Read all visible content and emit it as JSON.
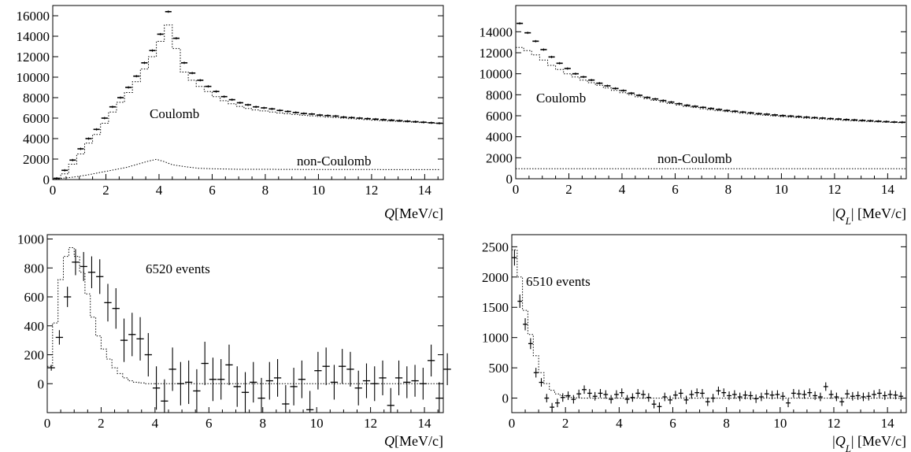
{
  "figure": {
    "background": "#ffffff",
    "ink": "#000000"
  },
  "chart_data": [
    {
      "id": "tl",
      "type": "histogram",
      "xlabel_parts": [
        {
          "t": "Q",
          "italic": true
        },
        {
          "t": "[MeV/c]",
          "italic": false
        }
      ],
      "xlim": [
        0,
        14.7
      ],
      "ylim": [
        0,
        17000
      ],
      "xticks": [
        0,
        2,
        4,
        6,
        8,
        10,
        12,
        14
      ],
      "yticks": [
        0,
        2000,
        4000,
        6000,
        8000,
        10000,
        12000,
        14000,
        16000
      ],
      "annotations": [
        {
          "text": "Coulomb"
        },
        {
          "text": "non-Coulomb"
        }
      ],
      "series": [
        {
          "style": "data",
          "x_start": 0,
          "bin_width": 0.3,
          "values": [
            120,
            900,
            1900,
            3000,
            4000,
            4900,
            6000,
            7100,
            8000,
            9000,
            10100,
            11400,
            12600,
            14200,
            16400,
            13800,
            11400,
            10400,
            9700,
            9100,
            8600,
            8100,
            7800,
            7500,
            7300,
            7100,
            7000,
            6900,
            6750,
            6650,
            6550,
            6450,
            6400,
            6300,
            6250,
            6200,
            6100,
            6050,
            6000,
            5950,
            5900,
            5850,
            5800,
            5750,
            5700,
            5650,
            5600,
            5550,
            5500
          ]
        },
        {
          "style": "dotted",
          "x_start": 0,
          "bin_width": 0.3,
          "values": [
            50,
            550,
            1500,
            2500,
            3550,
            4400,
            5500,
            6600,
            7550,
            8500,
            9550,
            10800,
            12000,
            13500,
            15100,
            12800,
            10500,
            9700,
            9100,
            8600,
            8100,
            7700,
            7400,
            7150,
            6950,
            6800,
            6700,
            6600,
            6500,
            6420,
            6350,
            6280,
            6220,
            6160,
            6100,
            6050,
            6000,
            5950,
            5900,
            5850,
            5800,
            5750,
            5710,
            5670,
            5630,
            5590,
            5550,
            5510,
            5480
          ]
        },
        {
          "style": "dotted-line",
          "x": [
            0.3,
            0.8,
            1.3,
            1.8,
            2.3,
            2.8,
            3.2,
            3.6,
            3.9,
            4.2,
            4.5,
            5.0,
            5.5,
            6.0,
            7.0,
            8.0,
            10.0,
            12.0,
            14.6
          ],
          "y": [
            100,
            250,
            450,
            700,
            950,
            1200,
            1500,
            1800,
            1980,
            1750,
            1450,
            1250,
            1100,
            1050,
            1000,
            1000,
            980,
            980,
            970
          ]
        }
      ]
    },
    {
      "id": "tr",
      "type": "histogram",
      "xlabel_parts": [
        {
          "t": "|",
          "italic": false
        },
        {
          "t": "Q",
          "italic": true
        },
        {
          "t": "L",
          "italic": true,
          "sub": true
        },
        {
          "t": "| [MeV/c]",
          "italic": false
        }
      ],
      "xlim": [
        0,
        14.7
      ],
      "ylim": [
        0,
        16500
      ],
      "xticks": [
        0,
        2,
        4,
        6,
        8,
        10,
        12,
        14
      ],
      "yticks": [
        0,
        2000,
        4000,
        6000,
        8000,
        10000,
        12000,
        14000
      ],
      "annotations": [
        {
          "text": "Coulomb"
        },
        {
          "text": "non-Coulomb"
        }
      ],
      "series": [
        {
          "style": "data",
          "x_start": 0,
          "bin_width": 0.3,
          "values": [
            14800,
            13900,
            13100,
            12300,
            11600,
            11000,
            10500,
            10000,
            9700,
            9400,
            9100,
            8850,
            8600,
            8400,
            8150,
            7950,
            7750,
            7600,
            7450,
            7300,
            7150,
            7000,
            6900,
            6800,
            6700,
            6600,
            6500,
            6430,
            6350,
            6280,
            6200,
            6150,
            6080,
            6020,
            5970,
            5920,
            5870,
            5820,
            5780,
            5730,
            5690,
            5640,
            5600,
            5560,
            5520,
            5480,
            5440,
            5400,
            5380
          ]
        },
        {
          "style": "dotted",
          "x_start": 0,
          "bin_width": 0.3,
          "values": [
            12500,
            12200,
            11800,
            11300,
            10800,
            10400,
            10000,
            9700,
            9400,
            9150,
            8900,
            8650,
            8420,
            8200,
            8000,
            7800,
            7620,
            7460,
            7310,
            7160,
            7020,
            6890,
            6780,
            6670,
            6570,
            6480,
            6400,
            6320,
            6240,
            6170,
            6100,
            6040,
            5980,
            5920,
            5870,
            5820,
            5770,
            5730,
            5680,
            5640,
            5600,
            5560,
            5520,
            5480,
            5450,
            5420,
            5390,
            5360,
            5340
          ]
        },
        {
          "style": "dotted-line",
          "x": [
            0.0,
            14.7
          ],
          "y": [
            950,
            950
          ]
        }
      ]
    },
    {
      "id": "bl",
      "type": "histogram",
      "xlabel_parts": [
        {
          "t": "Q",
          "italic": true
        },
        {
          "t": "[MeV/c]",
          "italic": false
        }
      ],
      "xlim": [
        0,
        14.7
      ],
      "ylim": [
        -200,
        1030
      ],
      "xticks": [
        0,
        2,
        4,
        6,
        8,
        10,
        12,
        14
      ],
      "yticks": [
        0,
        200,
        400,
        600,
        800,
        1000
      ],
      "annotations": [
        {
          "text": "6520 events"
        }
      ],
      "series": [
        {
          "style": "dotted",
          "x_start": 0,
          "bin_width": 0.2,
          "values": [
            120,
            420,
            720,
            880,
            940,
            880,
            770,
            620,
            460,
            330,
            240,
            170,
            110,
            70,
            40,
            20,
            10,
            5,
            0,
            0
          ]
        },
        {
          "style": "dotted-line",
          "x": [
            4.0,
            14.7
          ],
          "y": [
            0,
            0
          ]
        },
        {
          "style": "errorbars",
          "x_start": 0,
          "bin_width": 0.3,
          "values": [
            110,
            320,
            600,
            840,
            810,
            770,
            740,
            560,
            520,
            300,
            340,
            310,
            200,
            -30,
            -120,
            100,
            0,
            10,
            -50,
            140,
            30,
            30,
            130,
            -20,
            -60,
            10,
            -100,
            20,
            40,
            -140,
            -20,
            30,
            -180,
            90,
            120,
            10,
            120,
            100,
            -30,
            20,
            0,
            40,
            -150,
            40,
            10,
            20,
            0,
            160,
            -100,
            100
          ],
          "errors": [
            20,
            50,
            70,
            90,
            100,
            110,
            120,
            130,
            140,
            150,
            150,
            150,
            150,
            150,
            150,
            150,
            150,
            150,
            150,
            150,
            150,
            140,
            140,
            140,
            140,
            140,
            140,
            130,
            130,
            130,
            130,
            130,
            130,
            130,
            130,
            120,
            120,
            120,
            120,
            120,
            120,
            120,
            120,
            120,
            110,
            110,
            110,
            110,
            110,
            110
          ]
        }
      ]
    },
    {
      "id": "br",
      "type": "histogram",
      "xlabel_parts": [
        {
          "t": "|",
          "italic": false
        },
        {
          "t": "Q",
          "italic": true
        },
        {
          "t": "L",
          "italic": true,
          "sub": true
        },
        {
          "t": "| [MeV/c]",
          "italic": false
        }
      ],
      "xlim": [
        0,
        14.7
      ],
      "ylim": [
        -240,
        2700
      ],
      "xticks": [
        0,
        2,
        4,
        6,
        8,
        10,
        12,
        14
      ],
      "yticks": [
        0,
        500,
        1000,
        1500,
        2000,
        2500
      ],
      "annotations": [
        {
          "text": "6510 events"
        }
      ],
      "series": [
        {
          "style": "dotted",
          "x_start": 0,
          "bin_width": 0.2,
          "values": [
            2450,
            2000,
            1450,
            1050,
            700,
            420,
            240,
            130,
            70,
            40,
            20,
            10,
            5,
            0
          ]
        },
        {
          "style": "dotted-line",
          "x": [
            2.8,
            14.7
          ],
          "y": [
            0,
            0
          ]
        },
        {
          "style": "errorbars",
          "x_start": 0,
          "bin_width": 0.2,
          "values": [
            2320,
            1600,
            1220,
            900,
            420,
            260,
            0,
            -150,
            -80,
            10,
            40,
            -20,
            70,
            140,
            80,
            30,
            80,
            60,
            -20,
            60,
            90,
            -20,
            10,
            80,
            60,
            10,
            -100,
            -140,
            20,
            -30,
            50,
            80,
            -30,
            60,
            90,
            80,
            -60,
            0,
            120,
            90,
            40,
            60,
            20,
            50,
            40,
            -10,
            20,
            70,
            50,
            60,
            30,
            -80,
            80,
            70,
            60,
            90,
            40,
            20,
            190,
            60,
            20,
            -60,
            70,
            30,
            40,
            20,
            30,
            60,
            80,
            40,
            60,
            50,
            30
          ],
          "errors": [
            130,
            110,
            100,
            90,
            80,
            70,
            70,
            70,
            70,
            70,
            70,
            70,
            70,
            70,
            70,
            70,
            70,
            70,
            70,
            70,
            70,
            70,
            70,
            70,
            70,
            70,
            70,
            70,
            70,
            70,
            70,
            70,
            70,
            70,
            70,
            70,
            70,
            70,
            70,
            70,
            70,
            70,
            70,
            70,
            70,
            70,
            70,
            70,
            70,
            70,
            70,
            70,
            70,
            70,
            70,
            70,
            70,
            70,
            70,
            70,
            70,
            70,
            70,
            70,
            70,
            70,
            70,
            70,
            70,
            70,
            70,
            70,
            70
          ]
        }
      ]
    }
  ]
}
